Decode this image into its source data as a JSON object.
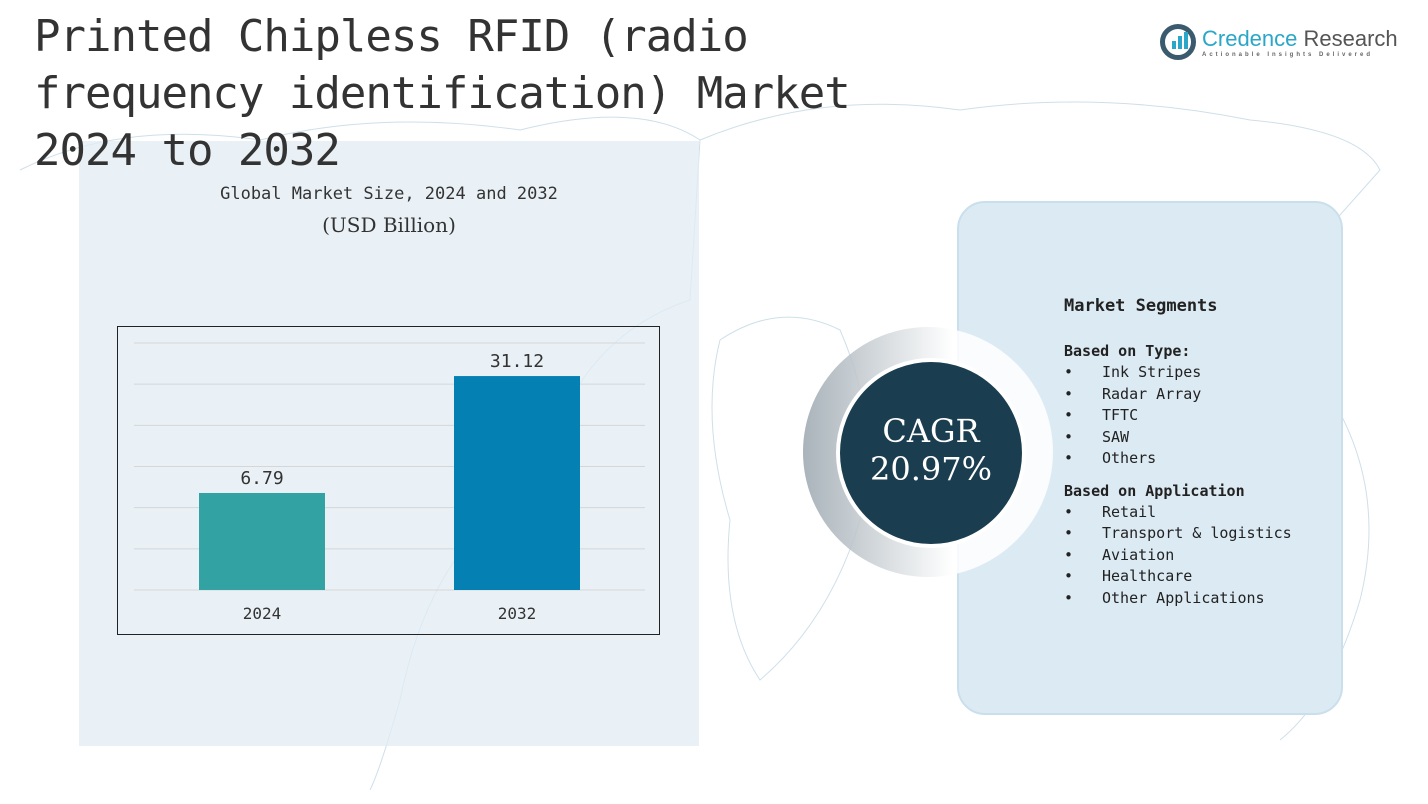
{
  "title": "Printed Chipless RFID (radio frequency identification) Market 2024 to 2032",
  "logo": {
    "name1": "Credence",
    "name2": "Research",
    "tagline": "Actionable Insights Delivered"
  },
  "colors": {
    "bar2024": "#32a2a2",
    "bar2032": "#0580b3",
    "cagr_bg": "#1a3d4f"
  },
  "cagr": {
    "label": "CAGR",
    "value": "20.97%"
  },
  "segments": {
    "title": "Market Segments",
    "type_heading": "Based on Type:",
    "types": [
      "Ink Stripes",
      "Radar Array",
      "TFTC",
      "SAW",
      "Others"
    ],
    "app_heading": "Based on Application",
    "apps": [
      "Retail",
      "Transport & logistics",
      "Aviation",
      "Healthcare",
      "Other Applications"
    ],
    "bullet": "•"
  },
  "chart_data": {
    "type": "bar",
    "title": "Global Market Size, 2024 and 2032",
    "subtitle": "(USD Billion)",
    "categories": [
      "2024",
      "2032"
    ],
    "values": [
      6.79,
      31.12
    ],
    "labels": [
      "6.79",
      "31.12"
    ],
    "xlabel": "",
    "ylabel": "",
    "ylim": [
      -13.4,
      38
    ],
    "grid": true,
    "gridlines": 7
  }
}
